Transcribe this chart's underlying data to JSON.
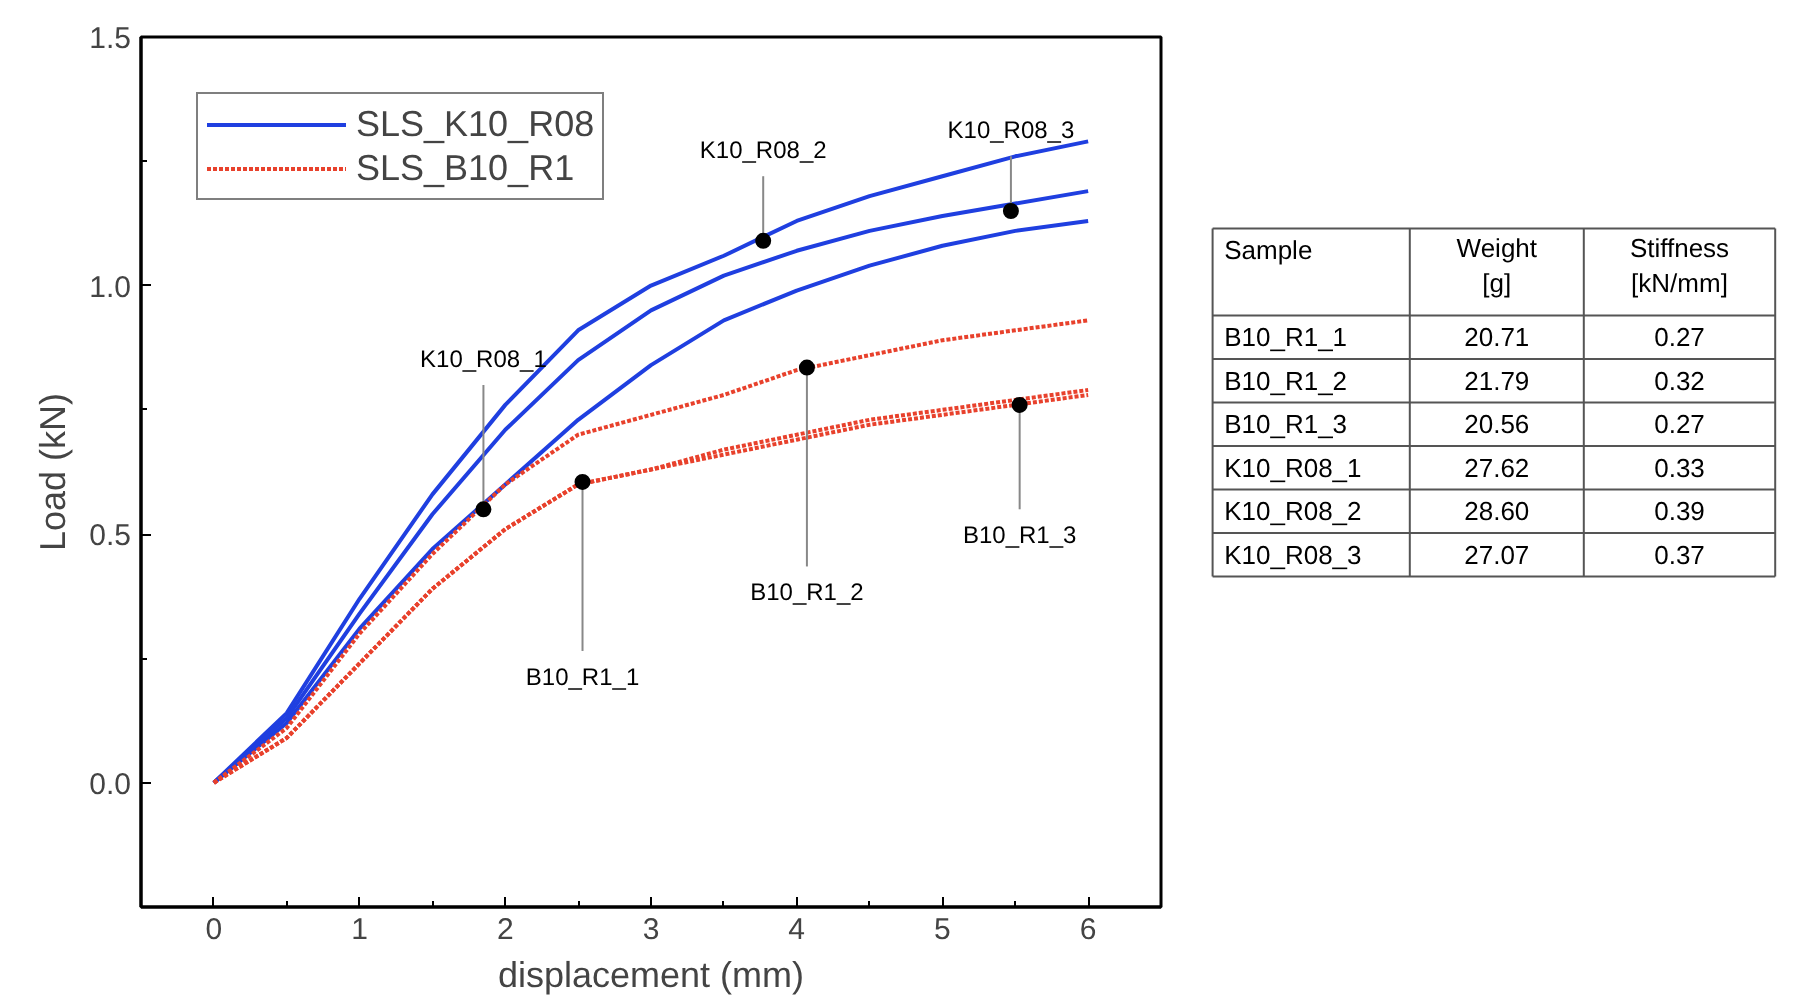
{
  "chart_data": [
    {
      "type": "line",
      "xlabel": "displacement (mm)",
      "ylabel": "Load (kN)",
      "x": [
        0,
        0.5,
        1,
        1.5,
        2,
        2.5,
        3,
        3.5,
        4,
        4.5,
        5,
        5.5,
        6
      ],
      "series": [
        {
          "name": "SLS_K10_R08",
          "color": "#1f3fe0",
          "line_style": "solid",
          "values": [
            0,
            0.12,
            0.31,
            0.47,
            0.6,
            0.73,
            0.84,
            0.93,
            0.99,
            1.04,
            1.08,
            1.11,
            1.13
          ]
        },
        {
          "color": "#1f3fe0",
          "line_style": "solid",
          "values": [
            0,
            0.14,
            0.37,
            0.58,
            0.76,
            0.91,
            1.0,
            1.06,
            1.13,
            1.18,
            1.22,
            1.26,
            1.29
          ]
        },
        {
          "color": "#1f3fe0",
          "line_style": "solid",
          "values": [
            0,
            0.13,
            0.34,
            0.54,
            0.71,
            0.85,
            0.95,
            1.02,
            1.07,
            1.11,
            1.14,
            1.165,
            1.19
          ]
        },
        {
          "name": "SLS_B10_R1",
          "color": "#e8412c",
          "line_style": "dotted",
          "values": [
            0,
            0.09,
            0.24,
            0.39,
            0.51,
            0.6,
            0.63,
            0.66,
            0.69,
            0.72,
            0.74,
            0.76,
            0.78
          ]
        },
        {
          "color": "#e8412c",
          "line_style": "dotted",
          "values": [
            0,
            0.11,
            0.3,
            0.46,
            0.6,
            0.7,
            0.74,
            0.78,
            0.83,
            0.86,
            0.89,
            0.91,
            0.93
          ]
        },
        {
          "color": "#e8412c",
          "line_style": "dotted",
          "values": [
            0,
            0.09,
            0.24,
            0.39,
            0.51,
            0.6,
            0.63,
            0.67,
            0.7,
            0.73,
            0.75,
            0.77,
            0.79
          ]
        }
      ],
      "annotations": [
        {
          "text": "K10_R08_1",
          "x": 1.85,
          "y": 0.55
        },
        {
          "text": "K10_R08_2",
          "x": 3.77,
          "y": 1.09
        },
        {
          "text": "K10_R08_3",
          "x": 5.47,
          "y": 1.15
        },
        {
          "text": "B10_R1_1",
          "x": 2.53,
          "y": 0.605
        },
        {
          "text": "B10_R1_2",
          "x": 4.07,
          "y": 0.835
        },
        {
          "text": "B10_R1_3",
          "x": 5.53,
          "y": 0.76
        }
      ],
      "xlim": [
        -0.5,
        6.5
      ],
      "ylim": [
        -0.25,
        1.5
      ],
      "xticks": [
        0,
        1,
        2,
        3,
        4,
        5,
        6
      ],
      "yticks": [
        {
          "value": 0,
          "label": "0.0"
        },
        {
          "value": 0.5,
          "label": "0.5"
        },
        {
          "value": 1,
          "label": "1.0"
        },
        {
          "value": 1.5,
          "label": "1.5"
        }
      ],
      "grid": false,
      "legend": "top left"
    },
    {
      "type": "other",
      "annotations": [
        "Sample",
        "Weight [g]",
        "Stiffness [kN/mm]",
        "B10_R1_1",
        "20.71",
        "0.27",
        "B10_R1_2",
        "21.79",
        "0.32",
        "B10_R1_3",
        "20.56",
        "0.27",
        "K10_R08_1",
        "27.62",
        "0.33",
        "K10_R08_2",
        "28.60",
        "0.39",
        "K10_R08_3",
        "27.07",
        "0.37"
      ]
    }
  ]
}
